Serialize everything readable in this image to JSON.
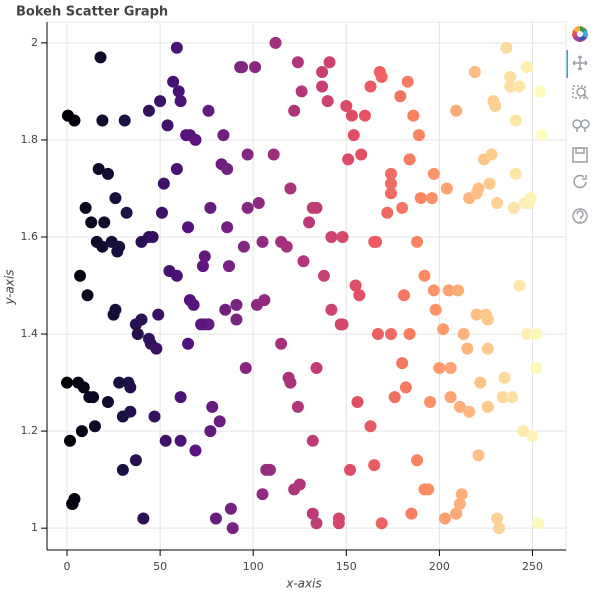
{
  "chart_data": {
    "type": "scatter",
    "title": "Bokeh Scatter Graph",
    "x_label": "x-axis",
    "y_label": "y-axis",
    "x": [
      0.5,
      4,
      19,
      31,
      18,
      0,
      6,
      9,
      1.6,
      8,
      15,
      2.7,
      3,
      4,
      12,
      14,
      22,
      7,
      11,
      17,
      22,
      10,
      13,
      16,
      19,
      24,
      26,
      20,
      27,
      28,
      32,
      25,
      26,
      28,
      33,
      30,
      34,
      34,
      37,
      30,
      41,
      37,
      38,
      40,
      44,
      45,
      48,
      47,
      49,
      44,
      40,
      46,
      51,
      52,
      44,
      50,
      54,
      57,
      60,
      61,
      59,
      59,
      55,
      59,
      53,
      61,
      64,
      66,
      69,
      65,
      66,
      68,
      65,
      61,
      69,
      74,
      76,
      72,
      73,
      74,
      77,
      76,
      78,
      77,
      82,
      80,
      84,
      83,
      86,
      86,
      85,
      87,
      88,
      89,
      91,
      91,
      93,
      94,
      96,
      95,
      97,
      97,
      101,
      102,
      105,
      103,
      106,
      107,
      109,
      105,
      111,
      112,
      115,
      118,
      115,
      119,
      120,
      120,
      122,
      124,
      122,
      125,
      127,
      126,
      124,
      130,
      132,
      134,
      134,
      132,
      132,
      134,
      137,
      137,
      138,
      140,
      141,
      142,
      142,
      147,
      148,
      146,
      146,
      148,
      150,
      151,
      154,
      153,
      152,
      155,
      157,
      156,
      158,
      160,
      163,
      163,
      165,
      166,
      165,
      168,
      169,
      167,
      169,
      172,
      174,
      174,
      174,
      174,
      176,
      179,
      180,
      180,
      181,
      183,
      182,
      184,
      184,
      185,
      186,
      188,
      188,
      189,
      190,
      192,
      192,
      194,
      195,
      196,
      197,
      197,
      198,
      200,
      202,
      204,
      205,
      203,
      206,
      206,
      209,
      209,
      211,
      212,
      209,
      210,
      211,
      213,
      215,
      216,
      216,
      219,
      220,
      221,
      220,
      221,
      222,
      224,
      225,
      226,
      226,
      226,
      227,
      228,
      229,
      230,
      231,
      231,
      232,
      234,
      235,
      236,
      238,
      238,
      239,
      240,
      241,
      241,
      243,
      243,
      245,
      246,
      247,
      247,
      248,
      249,
      250,
      252,
      252,
      253,
      254,
      255
    ],
    "y": [
      1.85,
      1.84,
      1.84,
      1.84,
      1.97,
      1.3,
      1.3,
      1.29,
      1.18,
      1.2,
      1.21,
      1.05,
      1.05,
      1.06,
      1.27,
      1.27,
      1.26,
      1.52,
      1.48,
      1.74,
      1.73,
      1.66,
      1.63,
      1.59,
      1.58,
      1.59,
      1.68,
      1.63,
      1.57,
      1.58,
      1.65,
      1.44,
      1.45,
      1.3,
      1.3,
      1.23,
      1.29,
      1.24,
      1.14,
      1.12,
      1.02,
      1.42,
      1.4,
      1.43,
      1.39,
      1.38,
      1.37,
      1.23,
      1.44,
      1.6,
      1.59,
      1.6,
      1.65,
      1.71,
      1.86,
      1.88,
      1.83,
      1.92,
      1.9,
      1.88,
      1.99,
      1.74,
      1.53,
      1.52,
      1.18,
      1.18,
      1.81,
      1.81,
      1.8,
      1.62,
      1.47,
      1.46,
      1.38,
      1.27,
      1.16,
      1.42,
      1.42,
      1.42,
      1.54,
      1.56,
      1.66,
      1.86,
      1.25,
      1.2,
      1.22,
      1.02,
      1.81,
      1.75,
      1.74,
      1.62,
      1.45,
      1.54,
      1.04,
      1.0,
      1.46,
      1.43,
      1.95,
      1.95,
      1.33,
      1.58,
      1.66,
      1.77,
      1.95,
      1.46,
      1.59,
      1.67,
      1.47,
      1.12,
      1.12,
      1.07,
      1.77,
      2.0,
      1.59,
      1.58,
      1.38,
      1.31,
      1.3,
      1.7,
      1.86,
      1.25,
      1.08,
      1.09,
      1.55,
      1.9,
      1.96,
      1.63,
      1.66,
      1.66,
      1.33,
      1.18,
      1.03,
      1.01,
      1.94,
      1.91,
      1.52,
      1.88,
      1.96,
      1.6,
      1.45,
      1.42,
      1.42,
      1.02,
      1.01,
      1.6,
      1.87,
      1.76,
      1.81,
      1.85,
      1.12,
      1.5,
      1.48,
      1.26,
      1.77,
      1.85,
      1.91,
      1.21,
      1.59,
      1.59,
      1.13,
      1.94,
      1.93,
      1.4,
      1.01,
      1.65,
      1.71,
      1.73,
      1.69,
      1.4,
      1.27,
      1.89,
      1.66,
      1.34,
      1.48,
      1.92,
      1.29,
      1.4,
      1.76,
      1.03,
      1.85,
      1.14,
      1.59,
      1.81,
      1.68,
      1.52,
      1.08,
      1.08,
      1.26,
      1.68,
      1.49,
      1.73,
      1.45,
      1.33,
      1.41,
      1.7,
      1.49,
      1.02,
      1.33,
      1.27,
      1.03,
      1.03,
      1.05,
      1.07,
      1.86,
      1.49,
      1.25,
      1.4,
      1.37,
      1.24,
      1.68,
      1.94,
      1.44,
      1.7,
      1.69,
      1.15,
      1.3,
      1.76,
      1.44,
      1.43,
      1.37,
      1.25,
      1.71,
      1.77,
      1.88,
      1.87,
      1.67,
      1.02,
      1.0,
      1.27,
      1.31,
      1.99,
      1.93,
      1.91,
      1.27,
      1.66,
      1.84,
      1.73,
      1.5,
      1.91,
      1.2,
      1.67,
      1.95,
      1.4,
      1.67,
      1.68,
      1.19,
      1.4,
      1.33,
      1.01,
      1.9,
      1.81
    ],
    "palette": [
      "#000004",
      "#1d1147",
      "#51127c",
      "#822681",
      "#b73779",
      "#e75263",
      "#fc8961",
      "#fec488",
      "#fcfdbf"
    ],
    "xlim": [
      -10.75,
      268
    ],
    "ylim": [
      0.955,
      2.043
    ],
    "xticks": [
      0,
      50,
      100,
      150,
      200,
      250
    ],
    "yticks": [
      1,
      1.2,
      1.4,
      1.6,
      1.8,
      2
    ],
    "grid": true
  }
}
